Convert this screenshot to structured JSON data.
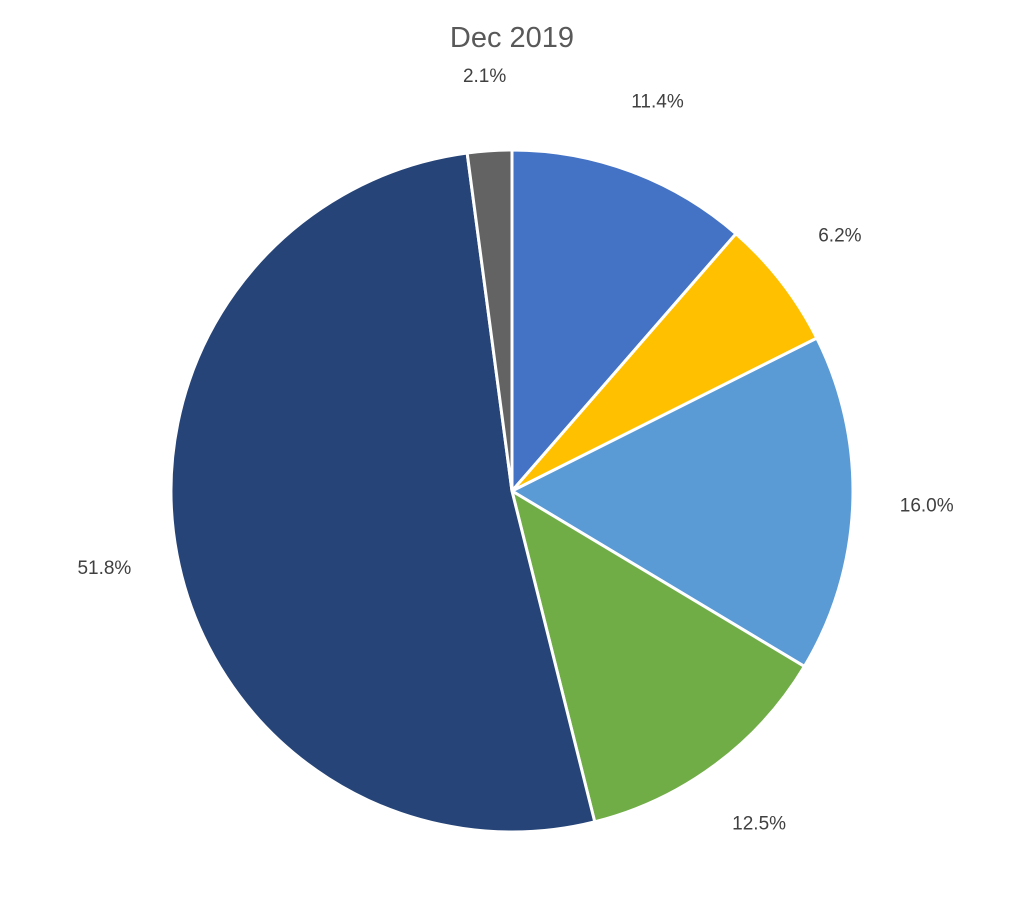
{
  "chart_data": {
    "type": "pie",
    "title": "Dec 2019",
    "legend": "none",
    "start_angle_deg": 0,
    "direction": "clockwise",
    "slices": [
      {
        "value": 11.4,
        "label": "11.4%",
        "color": "#4472C4"
      },
      {
        "value": 6.2,
        "label": "6.2%",
        "color": "#FFC000"
      },
      {
        "value": 16.0,
        "label": "16.0%",
        "color": "#5B9BD5"
      },
      {
        "value": 12.5,
        "label": "12.5%",
        "color": "#70AD47"
      },
      {
        "value": 51.8,
        "label": "51.8%",
        "color": "#264478"
      },
      {
        "value": 2.1,
        "label": "2.1%",
        "color": "#636363"
      }
    ]
  }
}
